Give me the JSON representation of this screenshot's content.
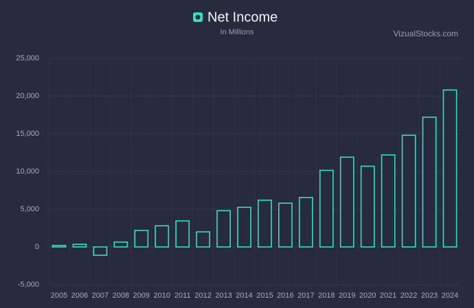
{
  "chart_data": {
    "type": "bar",
    "title": "Net Income",
    "subtitle": "In Millions",
    "source": "VizualStocks.com",
    "categories": [
      "2005",
      "2006",
      "2007",
      "2008",
      "2009",
      "2010",
      "2011",
      "2012",
      "2013",
      "2014",
      "2015",
      "2016",
      "2017",
      "2018",
      "2019",
      "2020",
      "2021",
      "2022",
      "2023",
      "2024"
    ],
    "values": [
      200,
      350,
      -1100,
      650,
      2200,
      2800,
      3450,
      2000,
      4800,
      5250,
      6200,
      5800,
      6550,
      10150,
      11900,
      10700,
      12200,
      14800,
      17200,
      20800
    ],
    "color": "#2ee3c4",
    "ylim": [
      -5000,
      25000
    ],
    "yticks": [
      {
        "value": -5000,
        "label": "-5,000"
      },
      0,
      {
        "value": 5000,
        "label": "5,000"
      },
      {
        "value": 10000,
        "label": "10,000"
      },
      {
        "value": 15000,
        "label": "15,000"
      },
      {
        "value": 20000,
        "label": "20,000"
      },
      {
        "value": 25000,
        "label": "25,000"
      }
    ],
    "grid": true
  }
}
